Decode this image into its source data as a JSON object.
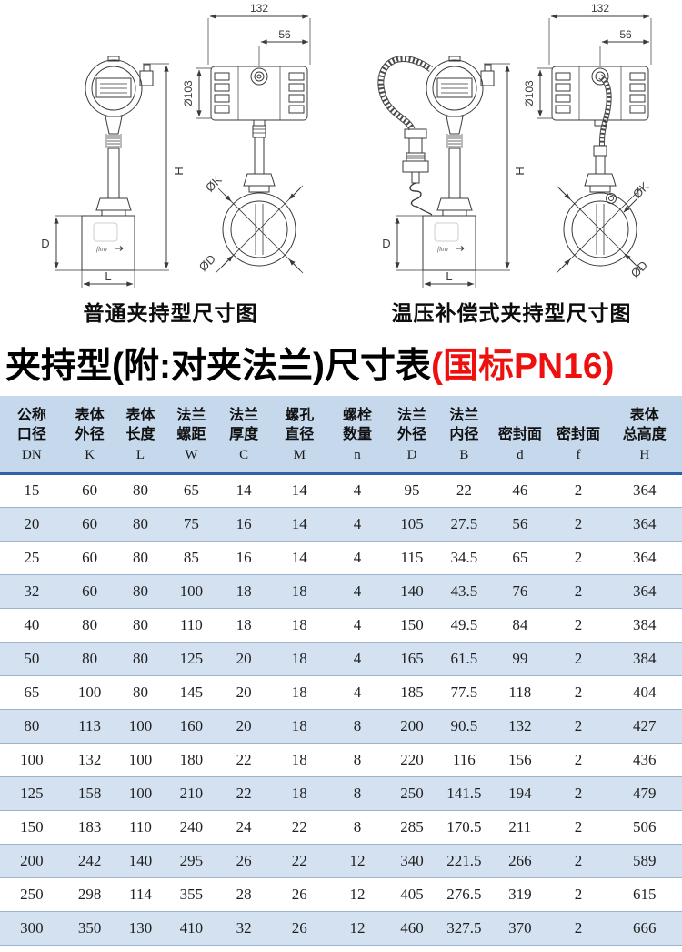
{
  "diagrams": {
    "flow_label": "flow",
    "left": {
      "caption": "普通夹持型尺寸图",
      "dims": {
        "top_width": "132",
        "top_offset": "56",
        "housing_dia": "Ø103",
        "total_height": "H",
        "body_height": "D",
        "body_length": "L",
        "bolt_circle": "ØK",
        "flange_dia": "ØD"
      }
    },
    "right": {
      "caption": "温压补偿式夹持型尺寸图",
      "dims": {
        "top_width": "132",
        "top_offset": "56",
        "housing_dia": "Ø103",
        "total_height": "H",
        "body_height": "D",
        "body_length": "L",
        "bolt_circle": "ØK",
        "flange_dia": "ØD"
      }
    }
  },
  "title": {
    "black": "夹持型(附:对夹法兰)尺寸表",
    "red": "(国标PN16)"
  },
  "table": {
    "columns": [
      {
        "name": "公称\n口径",
        "sym": "DN"
      },
      {
        "name": "表体\n外径",
        "sym": "K"
      },
      {
        "name": "表体\n长度",
        "sym": "L"
      },
      {
        "name": "法兰\n螺距",
        "sym": "W"
      },
      {
        "name": "法兰\n厚度",
        "sym": "C"
      },
      {
        "name": "螺孔\n直径",
        "sym": "M"
      },
      {
        "name": "螺栓\n数量",
        "sym": "n"
      },
      {
        "name": "法兰\n外径",
        "sym": "D"
      },
      {
        "name": "法兰\n内径",
        "sym": "B"
      },
      {
        "name": "密封面",
        "sym": "d"
      },
      {
        "name": "密封面",
        "sym": "f"
      },
      {
        "name": "表体\n总高度",
        "sym": "H"
      }
    ],
    "rows": [
      [
        "15",
        "60",
        "80",
        "65",
        "14",
        "14",
        "4",
        "95",
        "22",
        "46",
        "2",
        "364"
      ],
      [
        "20",
        "60",
        "80",
        "75",
        "16",
        "14",
        "4",
        "105",
        "27.5",
        "56",
        "2",
        "364"
      ],
      [
        "25",
        "60",
        "80",
        "85",
        "16",
        "14",
        "4",
        "115",
        "34.5",
        "65",
        "2",
        "364"
      ],
      [
        "32",
        "60",
        "80",
        "100",
        "18",
        "18",
        "4",
        "140",
        "43.5",
        "76",
        "2",
        "364"
      ],
      [
        "40",
        "80",
        "80",
        "110",
        "18",
        "18",
        "4",
        "150",
        "49.5",
        "84",
        "2",
        "384"
      ],
      [
        "50",
        "80",
        "80",
        "125",
        "20",
        "18",
        "4",
        "165",
        "61.5",
        "99",
        "2",
        "384"
      ],
      [
        "65",
        "100",
        "80",
        "145",
        "20",
        "18",
        "4",
        "185",
        "77.5",
        "118",
        "2",
        "404"
      ],
      [
        "80",
        "113",
        "100",
        "160",
        "20",
        "18",
        "8",
        "200",
        "90.5",
        "132",
        "2",
        "427"
      ],
      [
        "100",
        "132",
        "100",
        "180",
        "22",
        "18",
        "8",
        "220",
        "116",
        "156",
        "2",
        "436"
      ],
      [
        "125",
        "158",
        "100",
        "210",
        "22",
        "18",
        "8",
        "250",
        "141.5",
        "194",
        "2",
        "479"
      ],
      [
        "150",
        "183",
        "110",
        "240",
        "24",
        "22",
        "8",
        "285",
        "170.5",
        "211",
        "2",
        "506"
      ],
      [
        "200",
        "242",
        "140",
        "295",
        "26",
        "22",
        "12",
        "340",
        "221.5",
        "266",
        "2",
        "589"
      ],
      [
        "250",
        "298",
        "114",
        "355",
        "28",
        "26",
        "12",
        "405",
        "276.5",
        "319",
        "2",
        "615"
      ],
      [
        "300",
        "350",
        "130",
        "410",
        "32",
        "26",
        "12",
        "460",
        "327.5",
        "370",
        "2",
        "666"
      ]
    ]
  }
}
